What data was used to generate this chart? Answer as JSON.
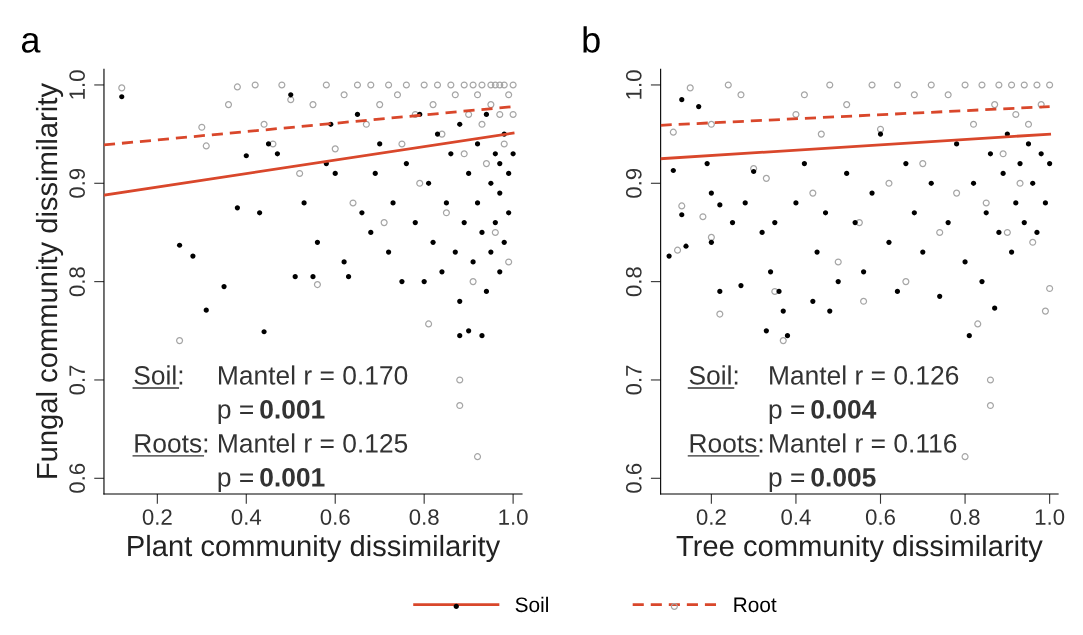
{
  "chart_data": [
    {
      "type": "scatter",
      "title": "a",
      "xlabel": "Plant community dissimilarity",
      "ylabel": "Fungal community dissimilarity",
      "xlim": [
        0.08,
        1.02
      ],
      "xticks": [
        0.2,
        0.4,
        0.6,
        0.8,
        {
          "value": 1,
          "label": "1.0"
        }
      ],
      "ylim": [
        0.584,
        1.016
      ],
      "yticks": [
        0.6,
        0.7,
        0.8,
        0.9,
        {
          "value": 1,
          "label": "1.0"
        }
      ],
      "grid": false,
      "legend": "bottom",
      "marker": "circle",
      "annotations": [
        "Soil:",
        "Mantel r = 0.170",
        "p =",
        "0.001",
        "Roots:",
        "Mantel r = 0.125",
        "p =",
        "0.001"
      ],
      "series": [
        {
          "color": "#000000",
          "x": [
            0.12,
            0.25,
            0.28,
            0.31,
            0.35,
            0.38,
            0.4,
            0.43,
            0.44,
            0.45,
            0.47,
            0.5,
            0.51,
            0.53,
            0.55,
            0.56,
            0.58,
            0.59,
            0.6,
            0.62,
            0.63,
            0.65,
            0.66,
            0.68,
            0.69,
            0.7,
            0.72,
            0.73,
            0.75,
            0.76,
            0.78,
            0.79,
            0.8,
            0.81,
            0.82,
            0.83,
            0.84,
            0.85,
            0.86,
            0.87,
            0.88,
            0.88,
            0.89,
            0.9,
            0.9,
            0.91,
            0.92,
            0.92,
            0.93,
            0.94,
            0.94,
            0.95,
            0.95,
            0.96,
            0.96,
            0.97,
            0.97,
            0.98,
            0.98,
            0.99,
            0.99,
            1.0,
            0.93,
            0.88,
            0.97
          ],
          "values": [
            0.988,
            0.837,
            0.826,
            0.771,
            0.795,
            0.875,
            0.928,
            0.87,
            0.749,
            0.94,
            0.93,
            0.99,
            0.805,
            0.88,
            0.805,
            0.84,
            0.92,
            0.96,
            0.91,
            0.82,
            0.805,
            0.97,
            0.87,
            0.85,
            0.91,
            0.94,
            0.83,
            0.88,
            0.8,
            0.92,
            0.86,
            0.97,
            0.8,
            0.9,
            0.84,
            0.95,
            0.81,
            0.88,
            0.93,
            0.83,
            0.78,
            0.96,
            0.86,
            0.91,
            0.75,
            0.82,
            0.94,
            0.88,
            0.85,
            0.79,
            0.97,
            0.9,
            0.83,
            0.86,
            0.93,
            0.81,
            0.89,
            0.95,
            0.84,
            0.91,
            0.87,
            0.93,
            0.745,
            0.745,
            0.92
          ]
        },
        {
          "color": "#a6a6a6",
          "x": [
            0.12,
            0.25,
            0.3,
            0.31,
            0.36,
            0.38,
            0.42,
            0.44,
            0.46,
            0.48,
            0.5,
            0.52,
            0.55,
            0.56,
            0.58,
            0.6,
            0.62,
            0.64,
            0.65,
            0.67,
            0.68,
            0.7,
            0.71,
            0.72,
            0.74,
            0.75,
            0.76,
            0.78,
            0.79,
            0.8,
            0.81,
            0.82,
            0.83,
            0.84,
            0.85,
            0.86,
            0.87,
            0.88,
            0.88,
            0.89,
            0.89,
            0.9,
            0.91,
            0.91,
            0.92,
            0.92,
            0.93,
            0.93,
            0.94,
            0.95,
            0.95,
            0.96,
            0.96,
            0.97,
            0.97,
            0.98,
            0.98,
            0.99,
            0.99,
            1.0,
            1.0
          ],
          "values": [
            0.997,
            0.74,
            0.957,
            0.938,
            0.98,
            0.998,
            1.0,
            0.96,
            0.94,
            1.0,
            0.985,
            0.91,
            0.98,
            0.797,
            1.0,
            0.935,
            0.99,
            0.88,
            1.0,
            0.96,
            1.0,
            0.98,
            0.86,
            1.0,
            0.99,
            0.94,
            1.0,
            0.97,
            0.9,
            1.0,
            0.757,
            0.98,
            1.0,
            0.95,
            0.87,
            1.0,
            0.99,
            0.7,
            0.674,
            0.93,
            1.0,
            0.97,
            0.8,
            1.0,
            0.622,
            0.99,
            0.96,
            1.0,
            0.92,
            1.0,
            0.98,
            0.85,
            1.0,
            0.97,
            1.0,
            0.94,
            1.0,
            0.99,
            0.82,
            1.0,
            0.97
          ]
        },
        {
          "type": "line",
          "name": "Soil",
          "color": "#d9472b",
          "line_style": "solid",
          "marker": "none",
          "x": [
            0.08,
            1.0
          ],
          "values": [
            0.888,
            0.951
          ]
        },
        {
          "type": "line",
          "name": "Root",
          "color": "#d9472b",
          "line_style": "dashed",
          "marker": "none",
          "x": [
            0.08,
            1.0
          ],
          "values": [
            0.939,
            0.978
          ]
        }
      ]
    },
    {
      "type": "scatter",
      "title": "b",
      "xlabel": "Tree community dissimilarity",
      "xlim": [
        0.08,
        1.02
      ],
      "xticks": [
        0.2,
        0.4,
        0.6,
        0.8,
        {
          "value": 1,
          "label": "1.0"
        }
      ],
      "ylim": [
        0.584,
        1.016
      ],
      "yticks": [
        0.6,
        0.7,
        0.8,
        0.9,
        {
          "value": 1,
          "label": "1.0"
        }
      ],
      "grid": false,
      "marker": "circle",
      "annotations": [
        "Soil:",
        "Mantel r = 0.126",
        "p =",
        "0.004",
        "Roots:",
        "Mantel r = 0.116",
        "p =",
        "0.005"
      ],
      "series": [
        {
          "color": "#000000",
          "x": [
            0.1,
            0.11,
            0.13,
            0.13,
            0.14,
            0.17,
            0.19,
            0.2,
            0.2,
            0.22,
            0.22,
            0.25,
            0.27,
            0.28,
            0.3,
            0.32,
            0.33,
            0.34,
            0.35,
            0.36,
            0.37,
            0.38,
            0.4,
            0.42,
            0.44,
            0.45,
            0.47,
            0.48,
            0.5,
            0.52,
            0.54,
            0.56,
            0.58,
            0.6,
            0.62,
            0.64,
            0.66,
            0.68,
            0.7,
            0.72,
            0.74,
            0.76,
            0.78,
            0.8,
            0.81,
            0.82,
            0.84,
            0.85,
            0.86,
            0.87,
            0.88,
            0.89,
            0.9,
            0.91,
            0.92,
            0.93,
            0.94,
            0.95,
            0.96,
            0.97,
            0.98,
            0.99,
            1.0
          ],
          "values": [
            0.826,
            0.913,
            0.985,
            0.868,
            0.836,
            0.978,
            0.92,
            0.84,
            0.89,
            0.79,
            0.878,
            0.86,
            0.796,
            0.88,
            0.912,
            0.85,
            0.75,
            0.81,
            0.86,
            0.79,
            0.77,
            0.745,
            0.88,
            0.92,
            0.78,
            0.83,
            0.87,
            0.77,
            0.8,
            0.91,
            0.86,
            0.81,
            0.89,
            0.95,
            0.84,
            0.79,
            0.92,
            0.87,
            0.83,
            0.9,
            0.785,
            0.86,
            0.94,
            0.82,
            0.745,
            0.9,
            0.8,
            0.87,
            0.93,
            0.773,
            0.85,
            0.91,
            0.95,
            0.83,
            0.88,
            0.92,
            0.86,
            0.94,
            0.9,
            0.85,
            0.93,
            0.88,
            0.92
          ]
        },
        {
          "color": "#a6a6a6",
          "x": [
            0.11,
            0.12,
            0.13,
            0.15,
            0.18,
            0.2,
            0.2,
            0.22,
            0.24,
            0.27,
            0.3,
            0.33,
            0.35,
            0.37,
            0.4,
            0.42,
            0.44,
            0.46,
            0.48,
            0.5,
            0.52,
            0.55,
            0.56,
            0.58,
            0.6,
            0.62,
            0.64,
            0.66,
            0.68,
            0.7,
            0.72,
            0.74,
            0.76,
            0.78,
            0.8,
            0.8,
            0.82,
            0.83,
            0.84,
            0.85,
            0.86,
            0.86,
            0.87,
            0.88,
            0.89,
            0.9,
            0.91,
            0.92,
            0.93,
            0.94,
            0.95,
            0.96,
            0.97,
            0.98,
            0.99,
            1.0,
            1.0
          ],
          "values": [
            0.952,
            0.832,
            0.877,
            0.997,
            0.866,
            0.96,
            0.845,
            0.767,
            1.0,
            0.99,
            0.915,
            0.905,
            0.79,
            0.74,
            0.97,
            0.99,
            0.89,
            0.95,
            1.0,
            0.82,
            0.98,
            0.86,
            0.78,
            1.0,
            0.955,
            0.9,
            1.0,
            0.8,
            0.99,
            0.92,
            1.0,
            0.85,
            0.99,
            0.89,
            1.0,
            0.622,
            0.96,
            0.757,
            1.0,
            0.88,
            0.7,
            0.674,
            0.98,
            1.0,
            0.93,
            0.85,
            1.0,
            0.97,
            0.9,
            1.0,
            0.96,
            0.84,
            1.0,
            0.98,
            0.77,
            1.0,
            0.793
          ]
        },
        {
          "type": "line",
          "color": "#d9472b",
          "line_style": "solid",
          "marker": "none",
          "x": [
            0.08,
            1.0
          ],
          "values": [
            0.925,
            0.95
          ]
        },
        {
          "type": "line",
          "color": "#d9472b",
          "line_style": "dashed",
          "marker": "none",
          "x": [
            0.08,
            1.0
          ],
          "values": [
            0.959,
            0.978
          ]
        }
      ]
    }
  ]
}
